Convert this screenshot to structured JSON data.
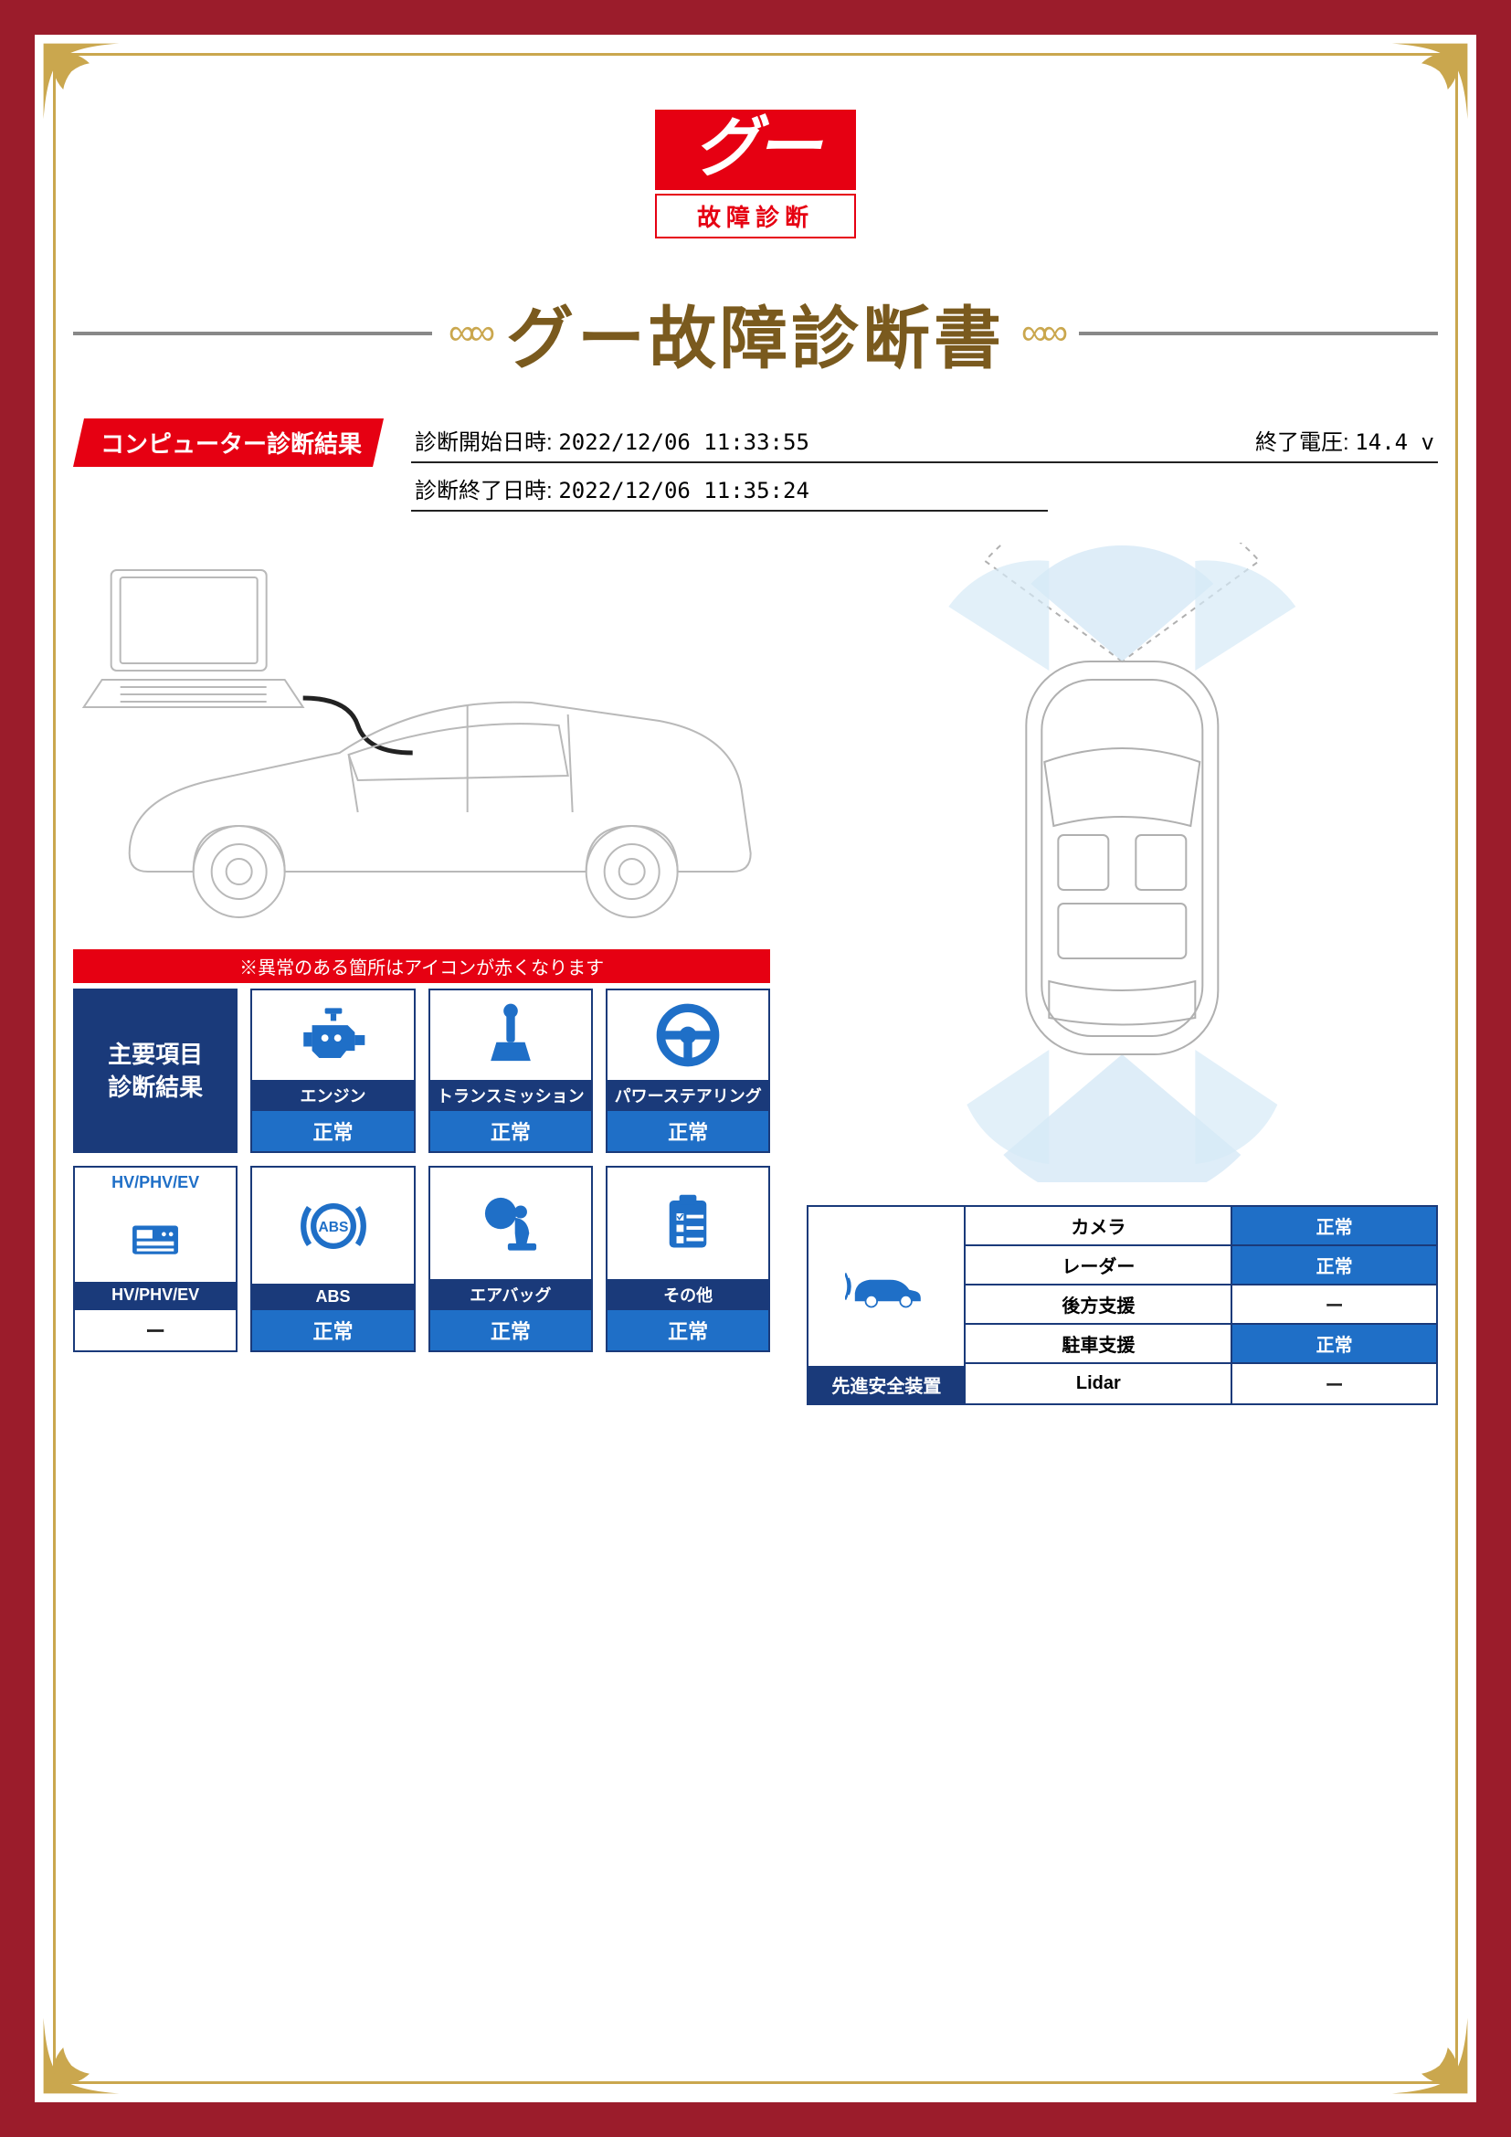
{
  "colors": {
    "border_red": "#9b1c2b",
    "gold": "#caa74e",
    "brand_red": "#e60012",
    "navy": "#1a3a7a",
    "blue": "#1f6fc7",
    "title_brown": "#7a5a1e"
  },
  "logo": {
    "main": "グー",
    "sub": "故障診断"
  },
  "title": "グー故障診断書",
  "diag_header": {
    "banner": "コンピューター診断結果",
    "start_label": "診断開始日時:",
    "start_value": "2022/12/06 11:33:55",
    "end_label": "診断終了日時:",
    "end_value": "2022/12/06 11:35:24",
    "voltage_label": "終了電圧:",
    "voltage_value": "14.4 v"
  },
  "status_note": "※異常のある箇所はアイコンが赤くなります",
  "status_header": {
    "line1": "主要項目",
    "line2": "診断結果"
  },
  "status_items": [
    {
      "key": "engine",
      "label": "エンジン",
      "value": "正常"
    },
    {
      "key": "transmission",
      "label": "トランスミッション",
      "value": "正常"
    },
    {
      "key": "power_steering",
      "label": "パワーステアリング",
      "value": "正常"
    },
    {
      "key": "hv",
      "top": "HV/PHV/EV",
      "label": "HV/PHV/EV",
      "value": "ー",
      "blank": true
    },
    {
      "key": "abs",
      "label": "ABS",
      "value": "正常"
    },
    {
      "key": "airbag",
      "label": "エアバッグ",
      "value": "正常"
    },
    {
      "key": "other",
      "label": "その他",
      "value": "正常"
    }
  ],
  "safety": {
    "header": "先進安全装置",
    "rows": [
      {
        "label": "カメラ",
        "value": "正常",
        "ok": true
      },
      {
        "label": "レーダー",
        "value": "正常",
        "ok": true
      },
      {
        "label": "後方支援",
        "value": "ー",
        "ok": false
      },
      {
        "label": "駐車支援",
        "value": "正常",
        "ok": true
      },
      {
        "label": "Lidar",
        "value": "ー",
        "ok": false
      }
    ]
  }
}
